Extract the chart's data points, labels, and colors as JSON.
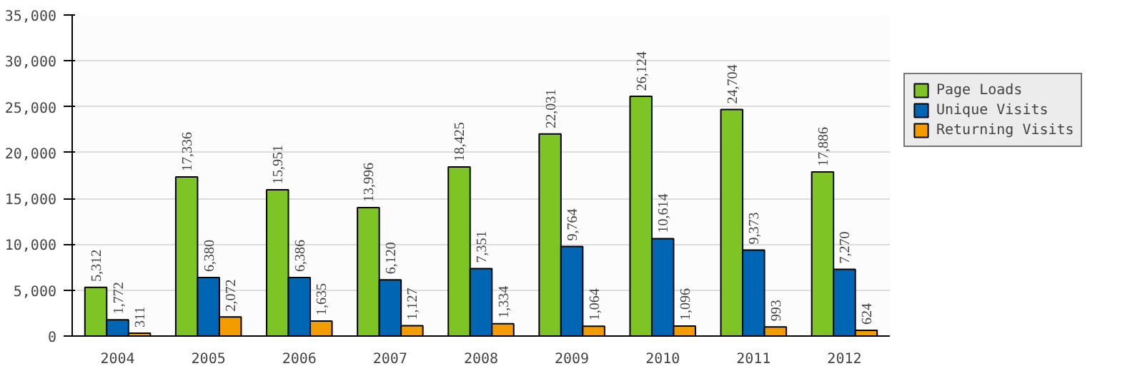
{
  "chart_data": {
    "type": "bar",
    "categories": [
      "2004",
      "2005",
      "2006",
      "2007",
      "2008",
      "2009",
      "2010",
      "2011",
      "2012"
    ],
    "series": [
      {
        "name": "Page Loads",
        "color": "#7dc424",
        "values": [
          5312,
          17336,
          15951,
          13996,
          18425,
          22031,
          26124,
          24704,
          17886
        ],
        "value_labels": [
          "5,312",
          "17,336",
          "15,951",
          "13,996",
          "18,425",
          "22,031",
          "26,124",
          "24,704",
          "17,886"
        ]
      },
      {
        "name": "Unique Visits",
        "color": "#0066b3",
        "values": [
          1772,
          6380,
          6386,
          6120,
          7351,
          9764,
          10614,
          9373,
          7270
        ],
        "value_labels": [
          "1,772",
          "6,380",
          "6,386",
          "6,120",
          "7,351",
          "9,764",
          "10,614",
          "9,373",
          "7,270"
        ]
      },
      {
        "name": "Returning Visits",
        "color": "#f29c00",
        "values": [
          311,
          2072,
          1635,
          1127,
          1334,
          1064,
          1096,
          993,
          624
        ],
        "value_labels": [
          "311",
          "2,072",
          "1,635",
          "1,127",
          "1,334",
          "1,064",
          "1,096",
          "993",
          "624"
        ]
      }
    ],
    "ylim": [
      0,
      35000
    ],
    "yticks": [
      0,
      {
        "value": 5000,
        "label": "5,000"
      },
      {
        "value": 10000,
        "label": "10,000"
      },
      {
        "value": 15000,
        "label": "15,000"
      },
      {
        "value": 20000,
        "label": "20,000"
      },
      {
        "value": 25000,
        "label": "25,000"
      },
      {
        "value": 30000,
        "label": "30,000"
      },
      {
        "value": 35000,
        "label": "35,000"
      }
    ],
    "grid": "y",
    "legend": "right"
  }
}
